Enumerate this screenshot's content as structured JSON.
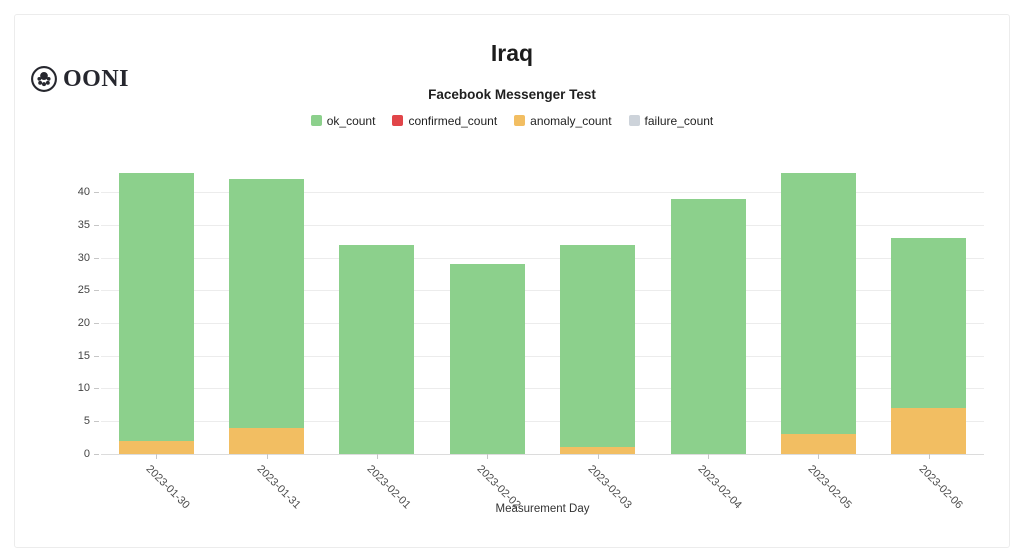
{
  "logo": {
    "text": "OONI"
  },
  "chart_data": {
    "type": "bar",
    "stacked": true,
    "title": "Iraq",
    "subtitle": "Facebook Messenger Test",
    "xlabel": "Measurement Day",
    "ylabel": "",
    "categories": [
      "2023-01-30",
      "2023-01-31",
      "2023-02-01",
      "2023-02-02",
      "2023-02-03",
      "2023-02-04",
      "2023-02-05",
      "2023-02-06"
    ],
    "series": [
      {
        "name": "ok_count",
        "color": "#8cd08c",
        "values": [
          41,
          38,
          32,
          29,
          31,
          39,
          40,
          26
        ]
      },
      {
        "name": "confirmed_count",
        "color": "#e14549",
        "values": [
          0,
          0,
          0,
          0,
          0,
          0,
          0,
          0
        ]
      },
      {
        "name": "anomaly_count",
        "color": "#f2be62",
        "values": [
          2,
          4,
          0,
          0,
          1,
          0,
          3,
          7
        ]
      },
      {
        "name": "failure_count",
        "color": "#cdd3da",
        "values": [
          0,
          0,
          0,
          0,
          0,
          0,
          0,
          0
        ]
      }
    ],
    "totals": [
      43,
      42,
      32,
      29,
      32,
      39,
      43,
      33
    ],
    "yticks": [
      0,
      5,
      10,
      15,
      20,
      25,
      30,
      35,
      40
    ],
    "ylim": [
      0,
      43.6
    ],
    "grid": true,
    "legend_position": "top"
  }
}
